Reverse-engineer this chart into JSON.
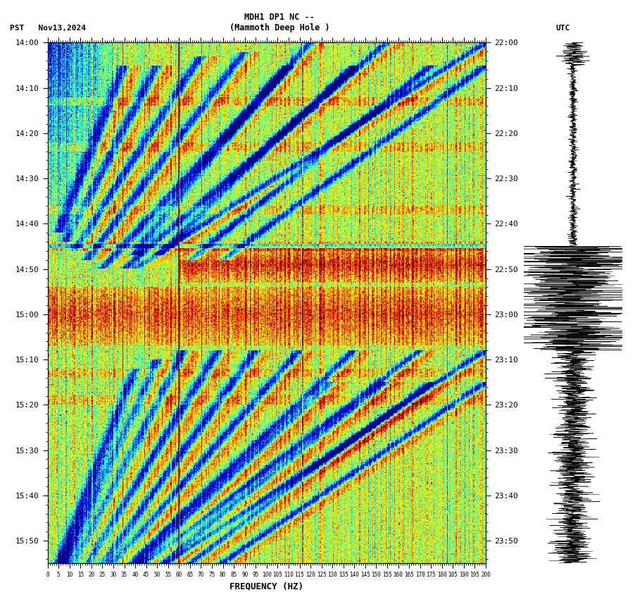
{
  "title_line1": "MDH1 DP1 NC --",
  "title_line2": "(Mammoth Deep Hole )",
  "label_left": "PST   Nov13,2024",
  "label_right": "UTC",
  "xlabel": "FREQUENCY (HZ)",
  "freq_min": 0,
  "freq_max": 200,
  "freq_ticks": [
    0,
    5,
    10,
    15,
    20,
    25,
    30,
    35,
    40,
    45,
    50,
    55,
    60,
    65,
    70,
    75,
    80,
    85,
    90,
    95,
    100,
    105,
    110,
    115,
    120,
    125,
    130,
    135,
    140,
    145,
    150,
    155,
    160,
    165,
    170,
    175,
    180,
    185,
    190,
    195,
    200
  ],
  "time_left_labels": [
    "14:00",
    "14:10",
    "14:20",
    "14:30",
    "14:40",
    "14:50",
    "15:00",
    "15:10",
    "15:20",
    "15:30",
    "15:40",
    "15:50"
  ],
  "time_right_labels": [
    "22:00",
    "22:10",
    "22:20",
    "22:30",
    "22:40",
    "22:50",
    "23:00",
    "23:10",
    "23:20",
    "23:30",
    "23:40",
    "23:50"
  ],
  "time_ticks_min": [
    0,
    10,
    20,
    30,
    40,
    50,
    60,
    70,
    80,
    90,
    100,
    110
  ],
  "total_minutes": 115,
  "vline_freq": 60,
  "colormap": "jet",
  "bg_color": "#ffffff",
  "seed": 42,
  "n_time": 600,
  "n_freq": 500
}
